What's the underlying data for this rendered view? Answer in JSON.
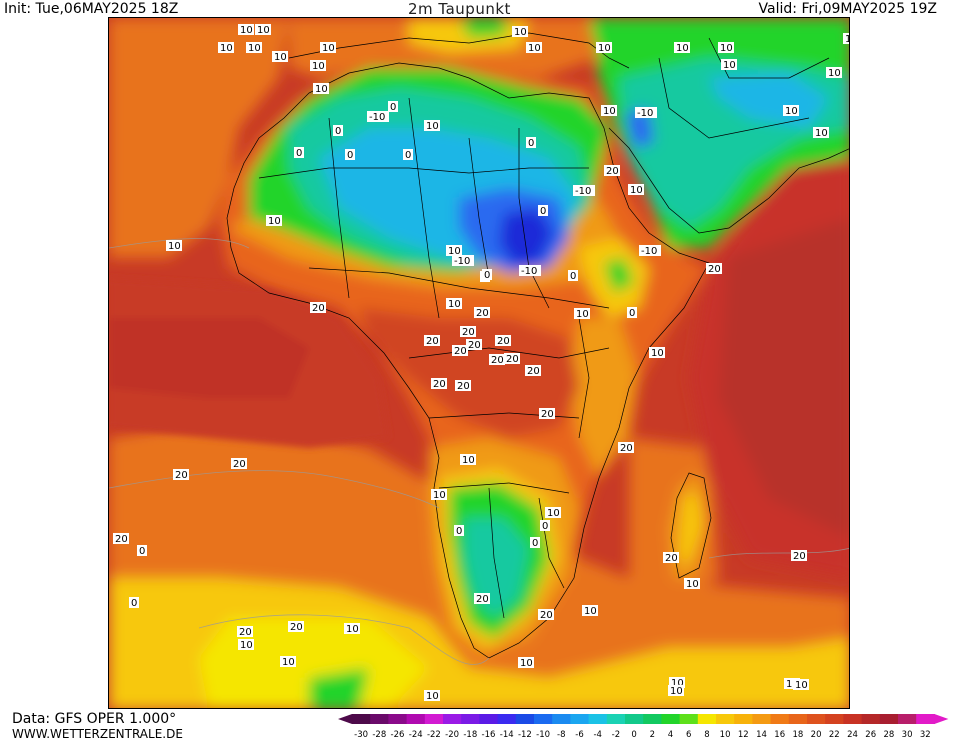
{
  "header": {
    "init": "Init: Tue,06MAY2025 18Z",
    "title": "2m Taupunkt",
    "valid": "Valid: Fri,09MAY2025 19Z"
  },
  "footer": {
    "data_source": "Data: GFS OPER 1.000°",
    "website": "WWW.WETTERZENTRALE.DE"
  },
  "colors": {
    "ocean_deep": "#b8302a",
    "ocean_mid": "#d3511e",
    "warm_orange": "#e8731a",
    "orange": "#f09a14",
    "yellow": "#f7c80a",
    "bright_yellow": "#f5e600",
    "green": "#22d42a",
    "teal": "#12c9a0",
    "cyan": "#1ab6e6",
    "blue": "#2a6af0",
    "deep_blue": "#1a2ad8",
    "magenta": "#e21ac8",
    "border_line": "#000000",
    "contour_line": "#9a9a9a"
  },
  "legend": {
    "ticks": [
      "-30",
      "-28",
      "-26",
      "-24",
      "-22",
      "-20",
      "-18",
      "-16",
      "-14",
      "-12",
      "-10",
      "-8",
      "-6",
      "-4",
      "-2",
      "0",
      "2",
      "4",
      "6",
      "8",
      "10",
      "12",
      "14",
      "16",
      "18",
      "20",
      "22",
      "24",
      "26",
      "28",
      "30",
      "32"
    ],
    "colors": [
      "#4d0a4a",
      "#6a0a6a",
      "#8a0a8a",
      "#b00ab0",
      "#d21ad2",
      "#9a1ae6",
      "#7a1ae6",
      "#5a1ae6",
      "#3a2af0",
      "#1a4ae6",
      "#1a6af0",
      "#1a8af0",
      "#1aa6f0",
      "#1ac2e6",
      "#1ad2b4",
      "#12c98a",
      "#12c960",
      "#22d42a",
      "#5ee01a",
      "#f5e600",
      "#f7c80a",
      "#f7b20a",
      "#f49a12",
      "#f07a16",
      "#e8651a",
      "#de521e",
      "#d44220",
      "#c83224",
      "#b52828",
      "#a81e30",
      "#b81e6a",
      "#e21ac8"
    ]
  },
  "map_labels": [
    {
      "text": "10"
    },
    {
      "text": "10"
    },
    {
      "text": "10"
    },
    {
      "text": "10"
    },
    {
      "text": "10"
    },
    {
      "text": "10"
    },
    {
      "text": "10"
    },
    {
      "text": "10"
    },
    {
      "text": "10"
    },
    {
      "text": "10"
    },
    {
      "text": "10"
    },
    {
      "text": "10"
    },
    {
      "text": "10"
    },
    {
      "text": "10"
    },
    {
      "text": "10"
    },
    {
      "text": "10"
    },
    {
      "text": "10"
    },
    {
      "text": "10"
    },
    {
      "text": "10"
    },
    {
      "text": "10"
    },
    {
      "text": "-10"
    },
    {
      "text": "-10"
    },
    {
      "text": "0"
    },
    {
      "text": "0"
    },
    {
      "text": "0"
    },
    {
      "text": "10"
    },
    {
      "text": "0"
    },
    {
      "text": "0"
    },
    {
      "text": "10"
    },
    {
      "text": "-10"
    },
    {
      "text": "10"
    },
    {
      "text": "0"
    },
    {
      "text": "20"
    },
    {
      "text": "-10"
    },
    {
      "text": "20"
    },
    {
      "text": "0"
    },
    {
      "text": "10"
    },
    {
      "text": "10"
    },
    {
      "text": "-10"
    },
    {
      "text": "10"
    },
    {
      "text": "0"
    },
    {
      "text": "-10"
    },
    {
      "text": "0"
    },
    {
      "text": "0"
    },
    {
      "text": "0"
    },
    {
      "text": "10"
    },
    {
      "text": "20"
    },
    {
      "text": "20"
    },
    {
      "text": "10"
    },
    {
      "text": "20"
    },
    {
      "text": "20"
    },
    {
      "text": "20"
    },
    {
      "text": "20"
    },
    {
      "text": "20"
    },
    {
      "text": "20"
    },
    {
      "text": "20"
    },
    {
      "text": "20"
    },
    {
      "text": "20"
    },
    {
      "text": "20"
    },
    {
      "text": "20"
    },
    {
      "text": "20"
    },
    {
      "text": "10"
    },
    {
      "text": "20"
    },
    {
      "text": "20"
    },
    {
      "text": "10"
    },
    {
      "text": "10"
    },
    {
      "text": "0"
    },
    {
      "text": "0"
    },
    {
      "text": "0"
    },
    {
      "text": "20"
    },
    {
      "text": "10"
    },
    {
      "text": "20"
    },
    {
      "text": "20"
    },
    {
      "text": "0"
    },
    {
      "text": "0"
    },
    {
      "text": "20"
    },
    {
      "text": "10"
    },
    {
      "text": "20"
    },
    {
      "text": "20"
    },
    {
      "text": "20"
    },
    {
      "text": "10"
    },
    {
      "text": "10"
    },
    {
      "text": "10"
    },
    {
      "text": "10"
    },
    {
      "text": "10"
    },
    {
      "text": "10"
    },
    {
      "text": "10"
    },
    {
      "text": "10"
    },
    {
      "text": "10"
    }
  ]
}
